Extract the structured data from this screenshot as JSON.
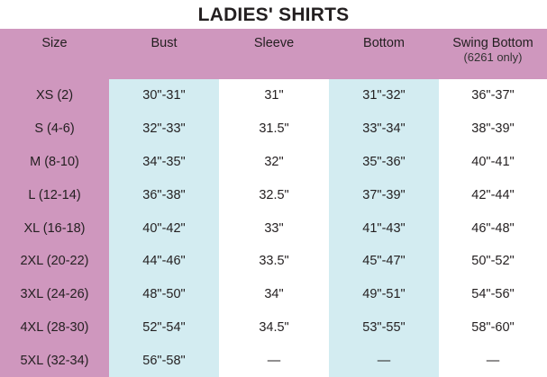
{
  "title": "LADIES' SHIRTS",
  "colors": {
    "header_bg": "#cf97be",
    "highlight_col": "#d3ecf1"
  },
  "columns": [
    {
      "label": "Size",
      "sub": ""
    },
    {
      "label": "Bust",
      "sub": ""
    },
    {
      "label": "Sleeve",
      "sub": ""
    },
    {
      "label": "Bottom",
      "sub": ""
    },
    {
      "label": "Swing Bottom",
      "sub": "(6261 only)"
    }
  ],
  "rows": [
    [
      "XS (2)",
      "30\"-31\"",
      "31\"",
      "31\"-32\"",
      "36\"-37\""
    ],
    [
      "S (4-6)",
      "32\"-33\"",
      "31.5\"",
      "33\"-34\"",
      "38\"-39\""
    ],
    [
      "M (8-10)",
      "34\"-35\"",
      "32\"",
      "35\"-36\"",
      "40\"-41\""
    ],
    [
      "L (12-14)",
      "36\"-38\"",
      "32.5\"",
      "37\"-39\"",
      "42\"-44\""
    ],
    [
      "XL (16-18)",
      "40\"-42\"",
      "33\"",
      "41\"-43\"",
      "46\"-48\""
    ],
    [
      "2XL (20-22)",
      "44\"-46\"",
      "33.5\"",
      "45\"-47\"",
      "50\"-52\""
    ],
    [
      "3XL (24-26)",
      "48\"-50\"",
      "34\"",
      "49\"-51\"",
      "54\"-56\""
    ],
    [
      "4XL (28-30)",
      "52\"-54\"",
      "34.5\"",
      "53\"-55\"",
      "58\"-60\""
    ],
    [
      "5XL (32-34)",
      "56\"-58\"",
      "—",
      "—",
      "—"
    ]
  ]
}
